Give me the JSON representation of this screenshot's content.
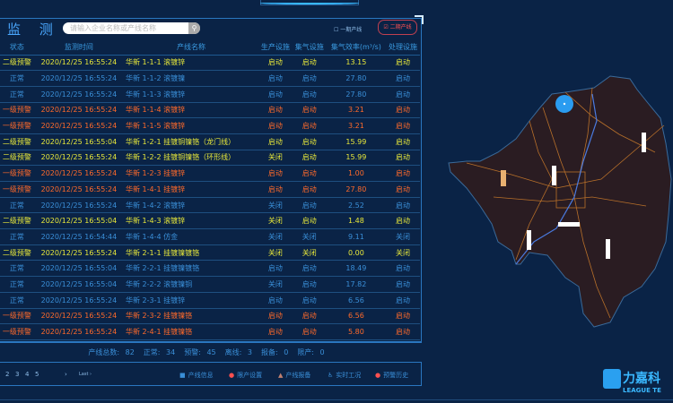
{
  "header": {
    "title": "监 测",
    "search_placeholder": "请输入企业名称或产线名称",
    "checkbox1": "一期产线",
    "checkbox2": "二期产线"
  },
  "table": {
    "columns": [
      "状态",
      "监测时间",
      "产线名称",
      "生产设施",
      "集气设施",
      "集气效率(m³/s)",
      "处理设施"
    ],
    "rows": [
      [
        "二级预警",
        "2020/12/25 16:55:24",
        "华新 1-1-1 滚镀锌",
        "启动",
        "启动",
        "13.15",
        "启动",
        "y"
      ],
      [
        "正常",
        "2020/12/25 16:55:24",
        "华新 1-1-2 滚镀镍",
        "启动",
        "启动",
        "27.80",
        "启动",
        "b"
      ],
      [
        "正常",
        "2020/12/25 16:55:24",
        "华新 1-1-3 滚镀锌",
        "启动",
        "启动",
        "27.80",
        "启动",
        "b"
      ],
      [
        "一级预警",
        "2020/12/25 16:55:24",
        "华新 1-1-4 滚镀锌",
        "启动",
        "启动",
        "3.21",
        "启动",
        "o"
      ],
      [
        "一级预警",
        "2020/12/25 16:55:24",
        "华新 1-1-5 滚镀锌",
        "启动",
        "启动",
        "3.21",
        "启动",
        "o"
      ],
      [
        "二级预警",
        "2020/12/25 16:55:04",
        "华新 1-2-1 挂镀铜镍铬（龙门线）",
        "启动",
        "启动",
        "15.99",
        "启动",
        "y"
      ],
      [
        "二级预警",
        "2020/12/25 16:55:24",
        "华新 1-2-2 挂镀铜镍铬（环形线）",
        "关闭",
        "启动",
        "15.99",
        "启动",
        "y"
      ],
      [
        "一级预警",
        "2020/12/25 16:55:24",
        "华新 1-2-3 挂镀锌",
        "启动",
        "启动",
        "1.00",
        "启动",
        "o"
      ],
      [
        "一级预警",
        "2020/12/25 16:55:24",
        "华新 1-4-1 挂镀锌",
        "启动",
        "启动",
        "27.80",
        "启动",
        "o"
      ],
      [
        "正常",
        "2020/12/25 16:55:24",
        "华新 1-4-2 滚镀锌",
        "关闭",
        "启动",
        "2.52",
        "启动",
        "b"
      ],
      [
        "二级预警",
        "2020/12/25 16:55:04",
        "华新 1-4-3 滚镀锌",
        "关闭",
        "启动",
        "1.48",
        "启动",
        "y"
      ],
      [
        "正常",
        "2020/12/25 16:54:44",
        "华新 1-4-4 仿金",
        "关闭",
        "关闭",
        "9.11",
        "关闭",
        "b"
      ],
      [
        "二级预警",
        "2020/12/25 16:55:24",
        "华新 2-1-1 挂镀镍镀铬",
        "关闭",
        "关闭",
        "0.00",
        "关闭",
        "y"
      ],
      [
        "正常",
        "2020/12/25 16:55:04",
        "华新 2-2-1 挂镀镍镀铬",
        "启动",
        "启动",
        "18.49",
        "启动",
        "b"
      ],
      [
        "正常",
        "2020/12/25 16:55:04",
        "华新 2-2-2 滚镀镍铜",
        "关闭",
        "启动",
        "17.82",
        "启动",
        "b"
      ],
      [
        "正常",
        "2020/12/25 16:55:24",
        "华新 2-3-1 挂镀锌",
        "启动",
        "启动",
        "6.56",
        "启动",
        "b"
      ],
      [
        "一级预警",
        "2020/12/25 16:55:24",
        "华新 2-3-2 挂镀镍铬",
        "启动",
        "启动",
        "6.56",
        "启动",
        "o"
      ],
      [
        "一级预警",
        "2020/12/25 16:55:24",
        "华新 2-4-1 挂镀镍铬",
        "启动",
        "启动",
        "5.80",
        "启动",
        "o"
      ]
    ]
  },
  "summary": {
    "total": "产线总数: 82",
    "normal": "正常: 34",
    "warning": "预警: 45",
    "offline": "离线: 3",
    "report": "报备: 0",
    "limit": "限产: 0"
  },
  "pager": {
    "pages": [
      "2",
      "3",
      "4",
      "5"
    ],
    "next": "›",
    "last": "Last ›"
  },
  "legend": [
    {
      "icon": "info-icon",
      "label": "产线信息"
    },
    {
      "icon": "limit-icon",
      "label": "限产设置"
    },
    {
      "icon": "warning-triangle-icon",
      "label": "产线报备"
    },
    {
      "icon": "person-icon",
      "label": "实时工况"
    },
    {
      "icon": "alarm-history-icon",
      "label": "预警历史"
    }
  ],
  "logo": {
    "cn": "力嘉科",
    "en": "LEAGUE TE"
  },
  "colors": {
    "level2": "#e8e83a",
    "level1": "#ff6a2a",
    "normal": "#3a8fd8",
    "background": "#0a2346"
  }
}
